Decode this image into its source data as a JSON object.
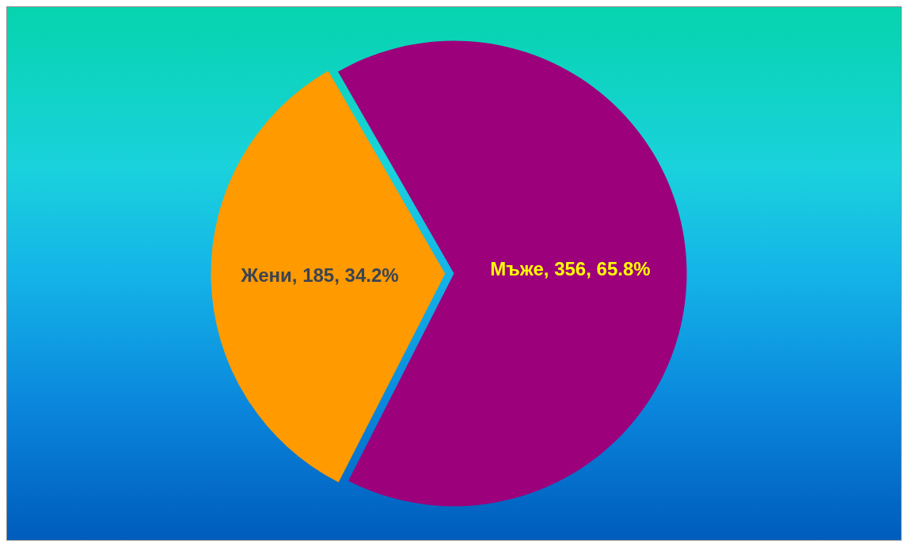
{
  "chart_data": {
    "type": "pie",
    "categories": [
      "Жени",
      "Мъже"
    ],
    "values": [
      185,
      356
    ],
    "colors": [
      "#ff9a00",
      "#9c007a"
    ],
    "value_labels": [
      ", 185, 34.2%",
      ", 356, 65.8%"
    ]
  }
}
